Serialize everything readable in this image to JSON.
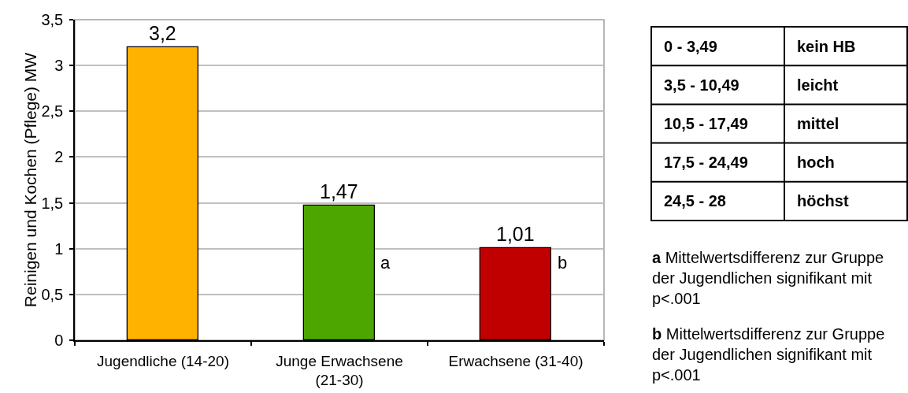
{
  "chart_data": [
    {
      "type": "bar",
      "ylabel": "Reinigen und Kochen (Pflege) MW",
      "categories": [
        "Jugendliche (14-20)",
        "Junge Erwachsene (21-30)",
        "Erwachsene (31-40)"
      ],
      "values": [
        3.2,
        1.47,
        1.01
      ],
      "colors": [
        "#ffb300",
        "#4da600",
        "#c00000"
      ],
      "value_labels": [
        "3,2",
        "1,47",
        "1,01"
      ],
      "ylim": [
        0,
        3.5
      ],
      "yticks": [
        0,
        {
          "value": 0.5,
          "label": "0,5"
        },
        1,
        {
          "value": 1.5,
          "label": "1,5"
        },
        2,
        {
          "value": 2.5,
          "label": "2,5"
        },
        3,
        {
          "value": 3.5,
          "label": "3,5"
        }
      ],
      "grid": "y",
      "annotations": [
        "a",
        "b",
        "a Mittelwertsdifferenz zur Gruppe der Jugendlichen signifikant mit p<.001",
        "b Mittelwertsdifferenz zur Gruppe der Jugendlichen signifikant mit p<.001"
      ]
    },
    {
      "type": "other",
      "annotations": [
        "0 - 3,49",
        "kein HB",
        "3,5 - 10,49",
        "leicht",
        "10,5 - 17,49",
        "mittel",
        "17,5 - 24,49",
        "hoch",
        "24,5 - 28",
        "höchst"
      ]
    }
  ]
}
